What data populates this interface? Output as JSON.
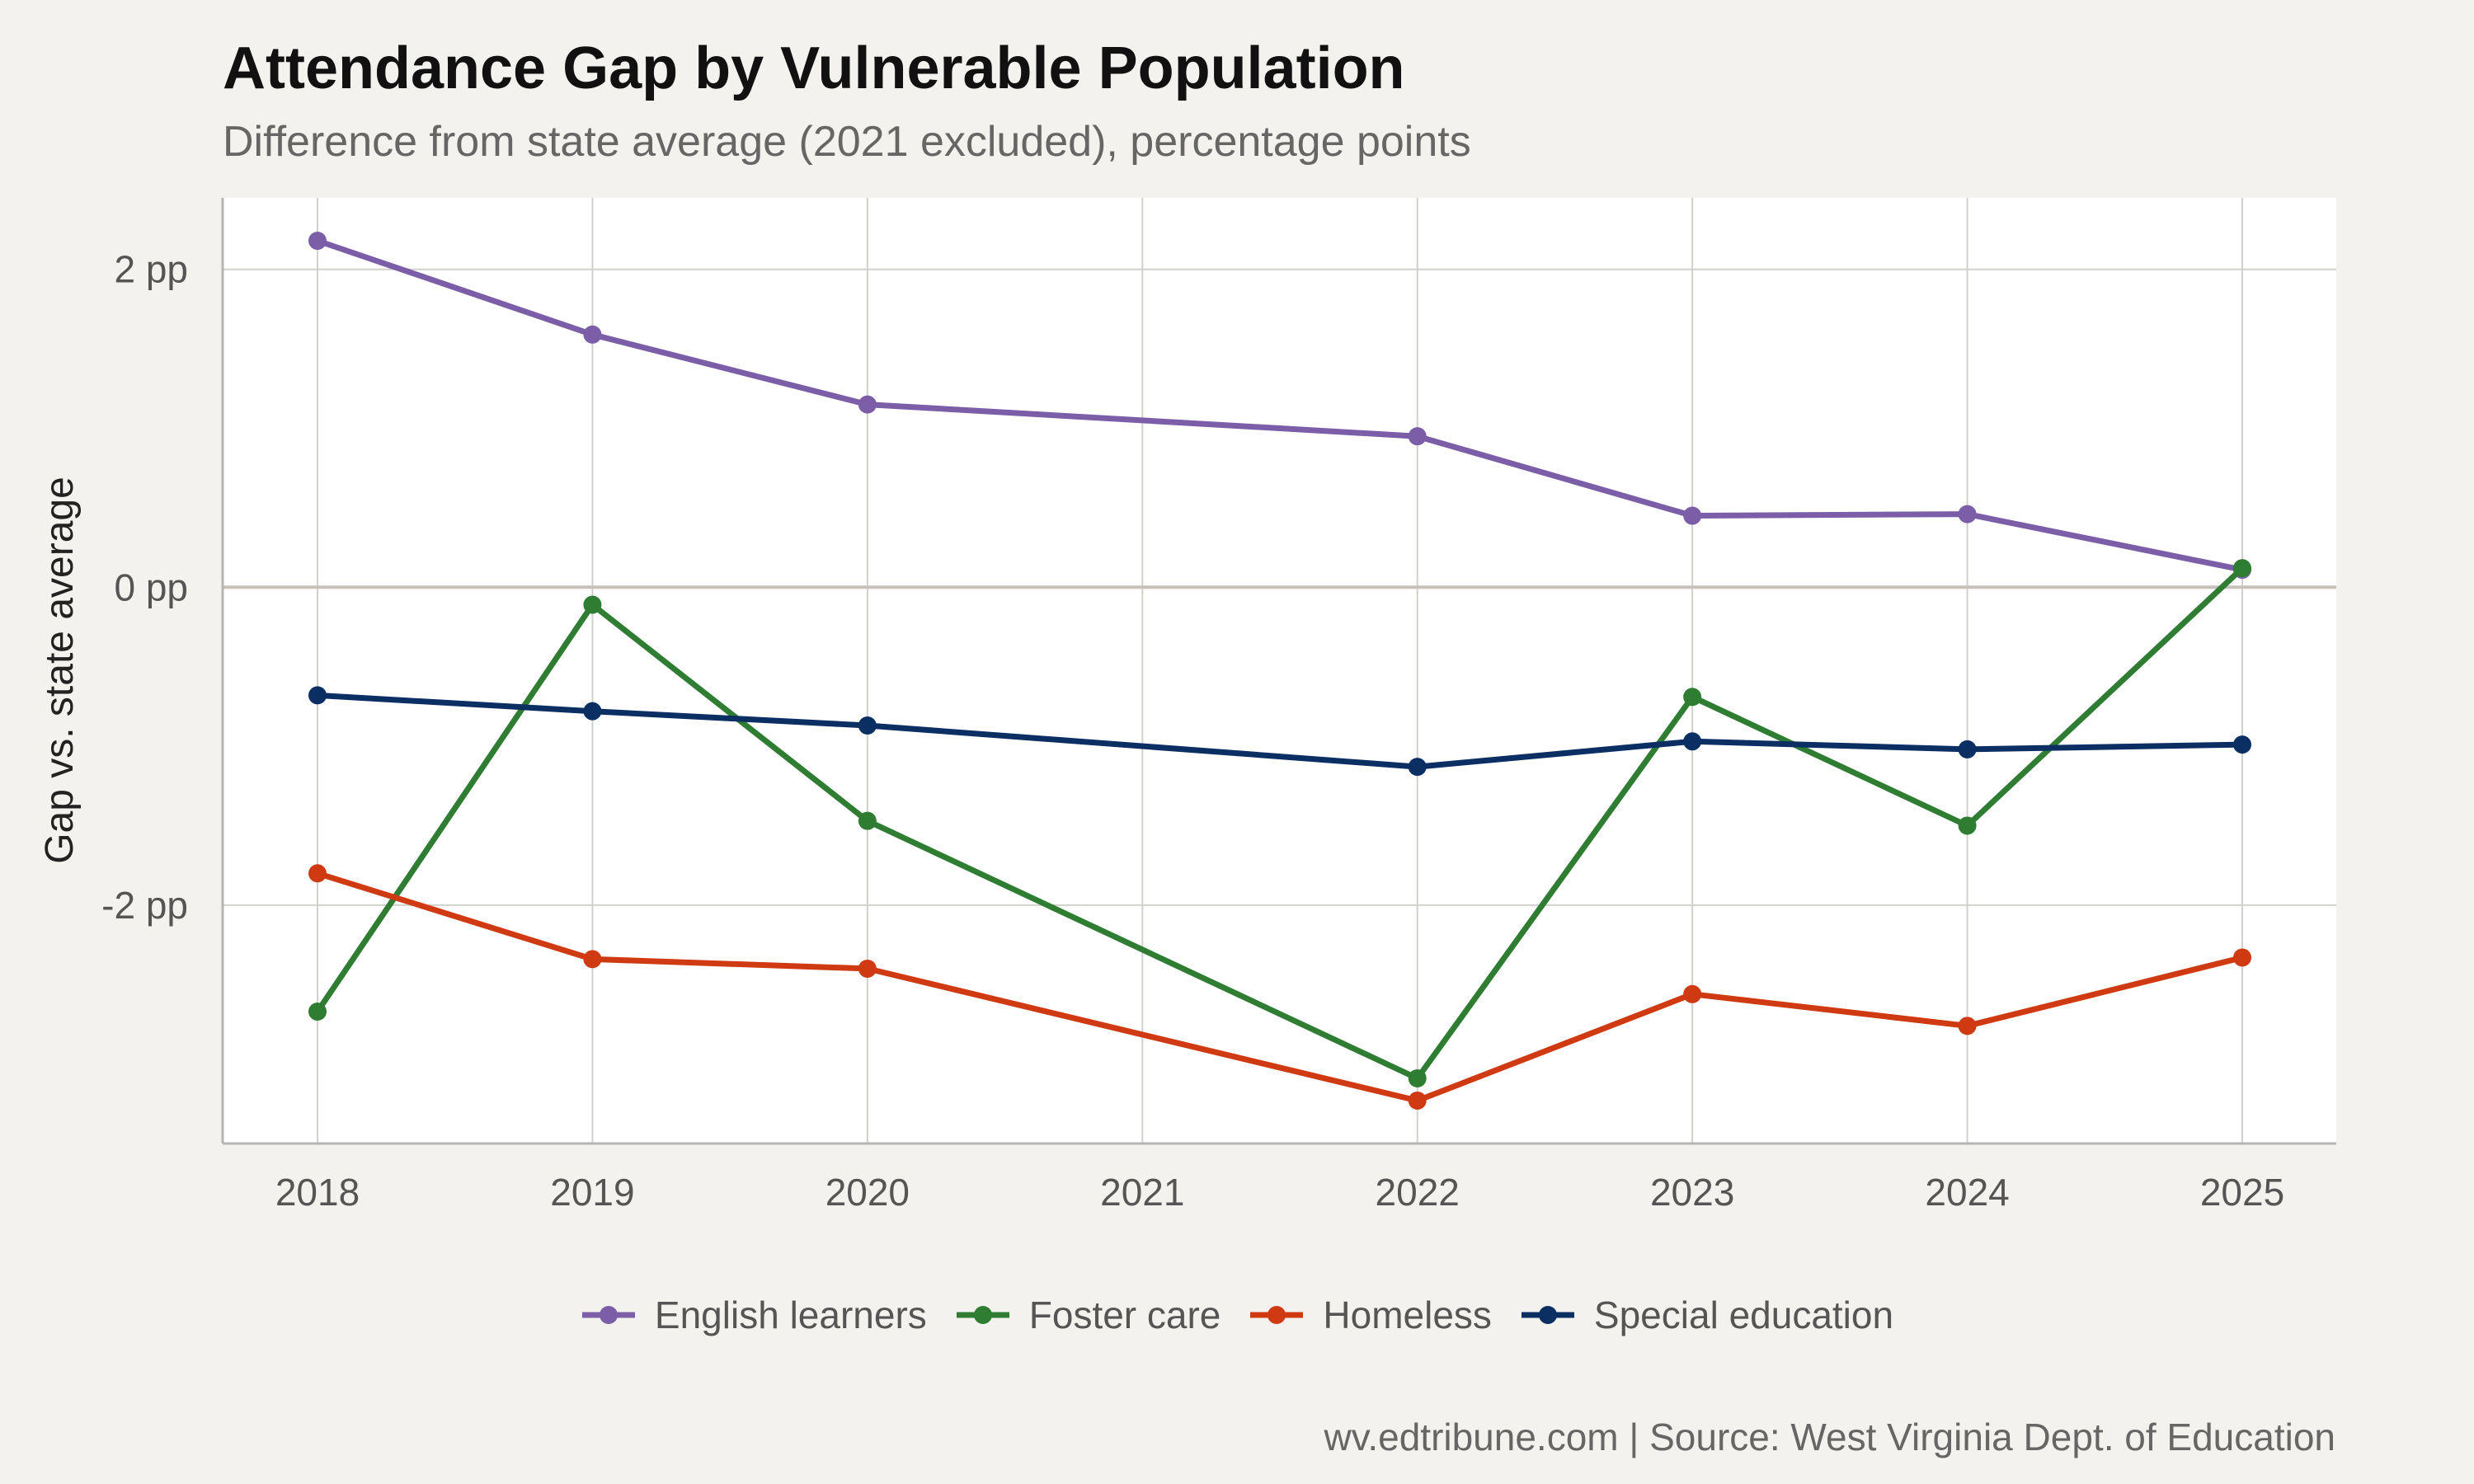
{
  "title": "Attendance Gap by Vulnerable Population",
  "subtitle": "Difference from state average (2021 excluded), percentage points",
  "caption": "wv.edtribune.com | Source: West Virginia Dept. of Education",
  "chart_data": {
    "type": "line",
    "title": "Attendance Gap by Vulnerable Population",
    "subtitle": "Difference from state average (2021 excluded), percentage points",
    "xlabel": "",
    "ylabel": "Gap vs. state average",
    "categories": [
      "2018",
      "2019",
      "2020",
      "2021",
      "2022",
      "2023",
      "2024",
      "2025"
    ],
    "y_ticks": [
      -2,
      0,
      2
    ],
    "y_tick_labels": [
      "-2 pp",
      "0 pp",
      "2 pp"
    ],
    "ylim": [
      -3.5,
      2.45
    ],
    "grid": true,
    "zero_line": true,
    "legend_position": "bottom",
    "series": [
      {
        "name": "English learners",
        "color": "#7b5ea7",
        "values": [
          2.18,
          1.59,
          1.15,
          null,
          0.95,
          0.45,
          0.46,
          0.11
        ]
      },
      {
        "name": "Foster care",
        "color": "#2e7d32",
        "values": [
          -2.67,
          -0.11,
          -1.47,
          null,
          -3.09,
          -0.69,
          -1.5,
          0.12
        ]
      },
      {
        "name": "Homeless",
        "color": "#cf3a12",
        "values": [
          -1.8,
          -2.34,
          -2.4,
          null,
          -3.23,
          -2.56,
          -2.76,
          -2.33
        ]
      },
      {
        "name": "Special education",
        "color": "#0b2f63",
        "values": [
          -0.68,
          -0.78,
          -0.87,
          null,
          -1.13,
          -0.97,
          -1.02,
          -0.99
        ]
      }
    ]
  }
}
